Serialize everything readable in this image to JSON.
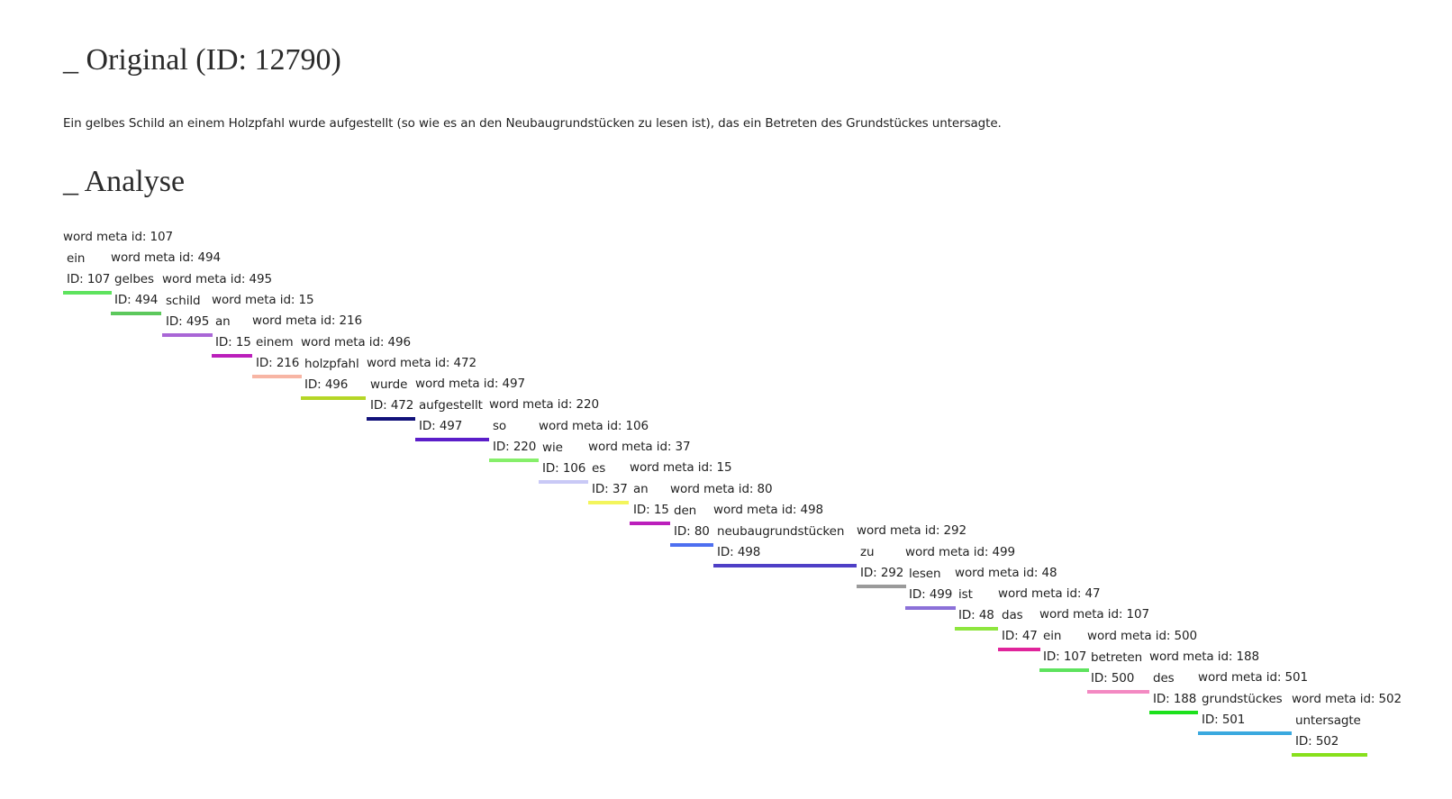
{
  "headings": {
    "original": "_ Original (ID: 12790)",
    "analysis": "_ Analyse"
  },
  "original_text": "Ein gelbes Schild an einem Holzpfahl wurde aufgestellt (so wie es an den Neubaugrundstücken zu lesen ist), das ein Betreten des Grundstückes untersagte.",
  "tokens": [
    {
      "meta": "word meta id: 107",
      "word": "ein",
      "id": "ID: 107",
      "color": "#5ee35e"
    },
    {
      "meta": "word meta id: 494",
      "word": "gelbes",
      "id": "ID: 494",
      "color": "#5cc85c"
    },
    {
      "meta": "word meta id: 495",
      "word": "schild",
      "id": "ID: 495",
      "color": "#a966d6"
    },
    {
      "meta": "word meta id: 15",
      "word": "an",
      "id": "ID: 15",
      "color": "#bb1fbb"
    },
    {
      "meta": "word meta id: 216",
      "word": "einem",
      "id": "ID: 216",
      "color": "#f7b5a4"
    },
    {
      "meta": "word meta id: 496",
      "word": "holzpfahl",
      "id": "ID: 496",
      "color": "#b5d626"
    },
    {
      "meta": "word meta id: 472",
      "word": "wurde",
      "id": "ID: 472",
      "color": "#12127a"
    },
    {
      "meta": "word meta id: 497",
      "word": "aufgestellt",
      "id": "ID: 497",
      "color": "#5b1ec9"
    },
    {
      "meta": "word meta id: 220",
      "word": "so",
      "id": "ID: 220",
      "color": "#86ef6a"
    },
    {
      "meta": "word meta id: 106",
      "word": "wie",
      "id": "ID: 106",
      "color": "#c9c9f6"
    },
    {
      "meta": "word meta id: 37",
      "word": "es",
      "id": "ID: 37",
      "color": "#f3f55c"
    },
    {
      "meta": "word meta id: 15",
      "word": "an",
      "id": "ID: 15",
      "color": "#bb1fbb"
    },
    {
      "meta": "word meta id: 80",
      "word": "den",
      "id": "ID: 80",
      "color": "#4d6ff0"
    },
    {
      "meta": "word meta id: 498",
      "word": "neubaugrundstücken",
      "id": "ID: 498",
      "color": "#4e3fc6"
    },
    {
      "meta": "word meta id: 292",
      "word": "zu",
      "id": "ID: 292",
      "color": "#9a9a9a"
    },
    {
      "meta": "word meta id: 499",
      "word": "lesen",
      "id": "ID: 499",
      "color": "#8b70d8"
    },
    {
      "meta": "word meta id: 48",
      "word": "ist",
      "id": "ID: 48",
      "color": "#8ee63e"
    },
    {
      "meta": "word meta id: 47",
      "word": "das",
      "id": "ID: 47",
      "color": "#e0249b"
    },
    {
      "meta": "word meta id: 107",
      "word": "ein",
      "id": "ID: 107",
      "color": "#5ee35e"
    },
    {
      "meta": "word meta id: 500",
      "word": "betreten",
      "id": "ID: 500",
      "color": "#f389c2"
    },
    {
      "meta": "word meta id: 188",
      "word": "des",
      "id": "ID: 188",
      "color": "#1ce11c"
    },
    {
      "meta": "word meta id: 501",
      "word": "grundstückes",
      "id": "ID: 501",
      "color": "#3aa9df"
    },
    {
      "meta": "word meta id: 502",
      "word": "untersagte",
      "id": "ID: 502",
      "color": "#88e01c"
    }
  ]
}
